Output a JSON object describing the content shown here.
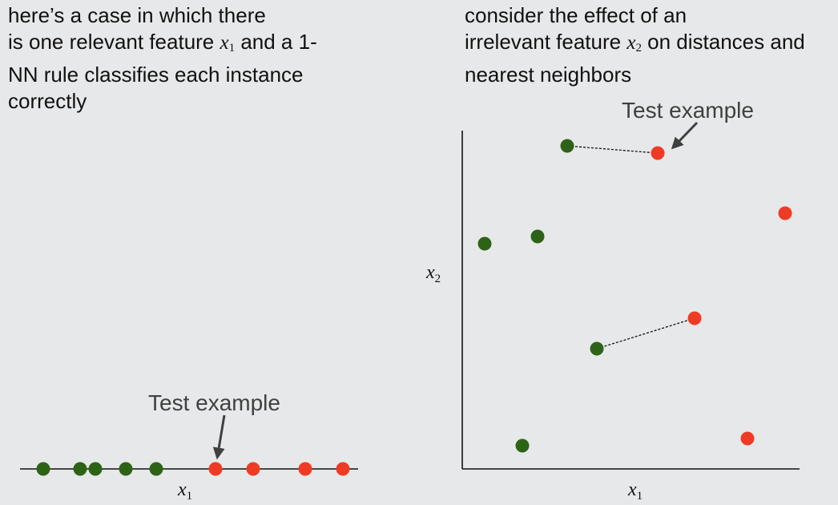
{
  "left_text": {
    "line1": "here’s a case in which there",
    "line2_pre": "is one relevant feature ",
    "line2_var": "x",
    "line2_sub": "1",
    "line2_post": " and a 1-",
    "line3": "NN rule classifies each instance",
    "line4": "correctly"
  },
  "right_text": {
    "line1": "consider the effect of an",
    "line2_pre": "irrelevant feature ",
    "line2_var": "x",
    "line2_sub": "2",
    "line2_post": " on distances and",
    "line3": "nearest neighbors"
  },
  "left_figure": {
    "callout": "Test example",
    "axis_var": "x",
    "axis_sub": "1"
  },
  "right_figure": {
    "callout": "Test example",
    "x_axis_var": "x",
    "x_axis_sub": "1",
    "y_axis_var": "x",
    "y_axis_sub": "2"
  },
  "colors": {
    "class_green": "#2d6316",
    "class_red": "#ef3b24",
    "axis": "#111111",
    "arrow": "#404040",
    "background": "#e7e8e9"
  }
}
